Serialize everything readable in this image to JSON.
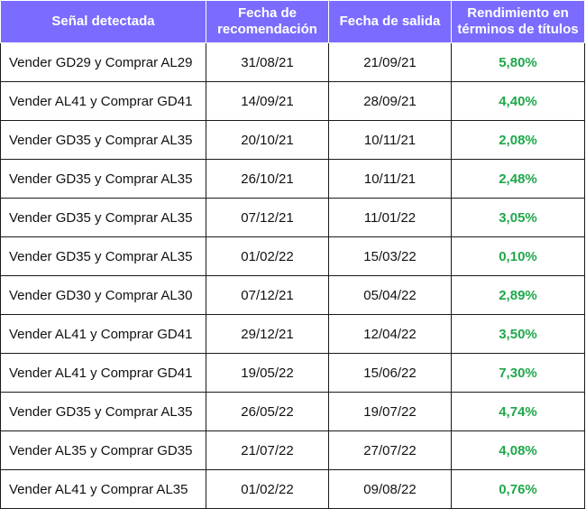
{
  "table": {
    "headers": [
      "Señal detectada",
      "Fecha de recomendación",
      "Fecha de salida",
      "Rendimiento en términos de títulos"
    ],
    "rows": [
      {
        "signal": "Vender GD29 y Comprar AL29",
        "recommendation_date": "31/08/21",
        "exit_date": "21/09/21",
        "yield": "5,80%"
      },
      {
        "signal": "Vender AL41 y Comprar GD41",
        "recommendation_date": "14/09/21",
        "exit_date": "28/09/21",
        "yield": "4,40%"
      },
      {
        "signal": "Vender GD35 y Comprar AL35",
        "recommendation_date": "20/10/21",
        "exit_date": "10/11/21",
        "yield": "2,08%"
      },
      {
        "signal": "Vender GD35 y Comprar AL35",
        "recommendation_date": "26/10/21",
        "exit_date": "10/11/21",
        "yield": "2,48%"
      },
      {
        "signal": "Vender GD35 y Comprar AL35",
        "recommendation_date": "07/12/21",
        "exit_date": "11/01/22",
        "yield": "3,05%"
      },
      {
        "signal": "Vender GD35 y Comprar AL35",
        "recommendation_date": "01/02/22",
        "exit_date": "15/03/22",
        "yield": "0,10%"
      },
      {
        "signal": "Vender GD30 y Comprar AL30",
        "recommendation_date": "07/12/21",
        "exit_date": "05/04/22",
        "yield": "2,89%"
      },
      {
        "signal": "Vender AL41 y Comprar GD41",
        "recommendation_date": "29/12/21",
        "exit_date": "12/04/22",
        "yield": "3,50%"
      },
      {
        "signal": "Vender AL41 y Comprar GD41",
        "recommendation_date": "19/05/22",
        "exit_date": "15/06/22",
        "yield": "7,30%"
      },
      {
        "signal": "Vender GD35 y Comprar AL35",
        "recommendation_date": "26/05/22",
        "exit_date": "19/07/22",
        "yield": "4,74%"
      },
      {
        "signal": "Vender AL35 y Comprar GD35",
        "recommendation_date": "21/07/22",
        "exit_date": "27/07/22",
        "yield": "4,08%"
      },
      {
        "signal": "Vender AL41 y Comprar AL35",
        "recommendation_date": "01/02/22",
        "exit_date": "09/08/22",
        "yield": "0,76%"
      }
    ]
  },
  "colors": {
    "header_bg": "#7b6cff",
    "header_text": "#ffffff",
    "yield_text": "#1ea84a",
    "border": "#1a1a1a"
  }
}
